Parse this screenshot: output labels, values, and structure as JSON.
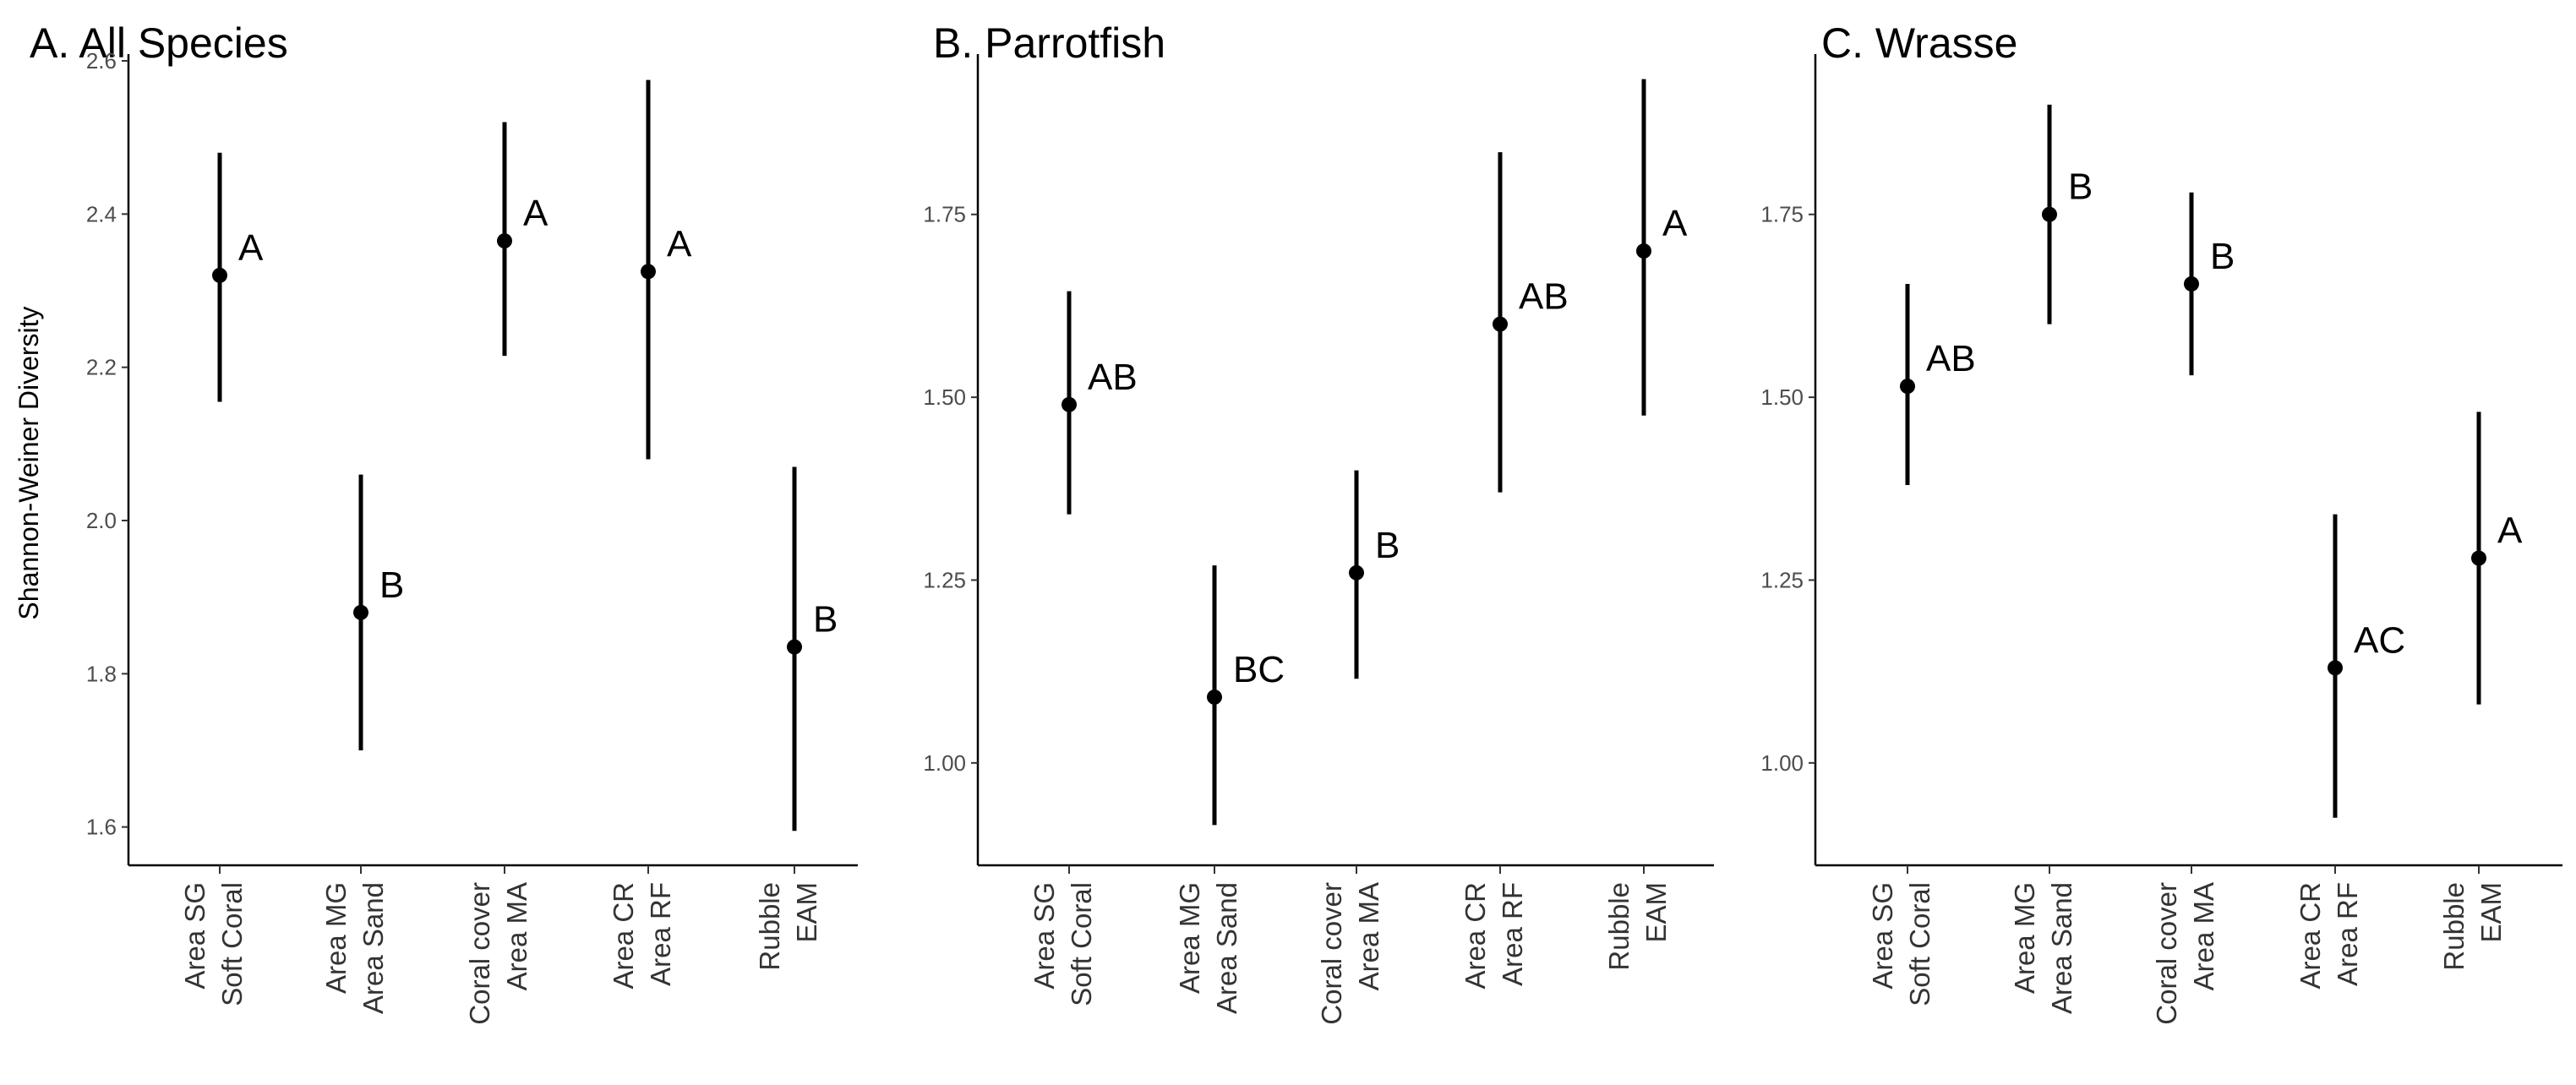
{
  "chart_data": [
    {
      "type": "pointrange",
      "title": "A. All Species",
      "ylabel": "Shannon-Weiner Diversity",
      "ylim": [
        1.55,
        2.6
      ],
      "yticks": [
        1.6,
        1.8,
        2.0,
        2.2,
        2.4,
        2.6
      ],
      "ytick_labels": [
        "1.6",
        "1.8",
        "2.0",
        "2.2",
        "2.4",
        "2.6"
      ],
      "categories": [
        {
          "line1": "Area SG",
          "line2": "Soft Coral"
        },
        {
          "line1": "Area MG",
          "line2": "Area Sand"
        },
        {
          "line1": "Coral cover",
          "line2": "Area MA"
        },
        {
          "line1": "Area CR",
          "line2": "Area RF"
        },
        {
          "line1": "Rubble",
          "line2": "EAM"
        }
      ],
      "points": [
        {
          "y": 2.32,
          "low": 2.155,
          "high": 2.48,
          "label": "A"
        },
        {
          "y": 1.88,
          "low": 1.7,
          "high": 2.06,
          "label": "B"
        },
        {
          "y": 2.365,
          "low": 2.215,
          "high": 2.52,
          "label": "A"
        },
        {
          "y": 2.325,
          "low": 2.08,
          "high": 2.575,
          "label": "A"
        },
        {
          "y": 1.835,
          "low": 1.595,
          "high": 2.07,
          "label": "B"
        }
      ]
    },
    {
      "type": "pointrange",
      "title": "B. Parrotfish",
      "ylabel": "",
      "ylim": [
        0.86,
        1.96
      ],
      "yticks": [
        1.0,
        1.25,
        1.5,
        1.75
      ],
      "ytick_labels": [
        "1.00",
        "1.25",
        "1.50",
        "1.75"
      ],
      "categories": [
        {
          "line1": "Area SG",
          "line2": "Soft Coral"
        },
        {
          "line1": "Area MG",
          "line2": "Area Sand"
        },
        {
          "line1": "Coral cover",
          "line2": "Area MA"
        },
        {
          "line1": "Area CR",
          "line2": "Area RF"
        },
        {
          "line1": "Rubble",
          "line2": "EAM"
        }
      ],
      "points": [
        {
          "y": 1.49,
          "low": 1.34,
          "high": 1.645,
          "label": "AB"
        },
        {
          "y": 1.09,
          "low": 0.915,
          "high": 1.27,
          "label": "BC"
        },
        {
          "y": 1.26,
          "low": 1.115,
          "high": 1.4,
          "label": "B"
        },
        {
          "y": 1.6,
          "low": 1.37,
          "high": 1.835,
          "label": "AB"
        },
        {
          "y": 1.7,
          "low": 1.475,
          "high": 1.935,
          "label": "A"
        }
      ]
    },
    {
      "type": "pointrange",
      "title": "C. Wrasse",
      "ylabel": "",
      "ylim": [
        0.86,
        1.96
      ],
      "yticks": [
        1.0,
        1.25,
        1.5,
        1.75
      ],
      "ytick_labels": [
        "1.00",
        "1.25",
        "1.50",
        "1.75"
      ],
      "categories": [
        {
          "line1": "Area SG",
          "line2": "Soft Coral"
        },
        {
          "line1": "Area MG",
          "line2": "Area Sand"
        },
        {
          "line1": "Coral cover",
          "line2": "Area MA"
        },
        {
          "line1": "Area CR",
          "line2": "Area RF"
        },
        {
          "line1": "Rubble",
          "line2": "EAM"
        }
      ],
      "points": [
        {
          "y": 1.515,
          "low": 1.38,
          "high": 1.655,
          "label": "AB"
        },
        {
          "y": 1.75,
          "low": 1.6,
          "high": 1.9,
          "label": "B"
        },
        {
          "y": 1.655,
          "low": 1.53,
          "high": 1.78,
          "label": "B"
        },
        {
          "y": 1.13,
          "low": 0.925,
          "high": 1.34,
          "label": "AC"
        },
        {
          "y": 1.28,
          "low": 1.08,
          "high": 1.48,
          "label": "A"
        }
      ]
    }
  ]
}
